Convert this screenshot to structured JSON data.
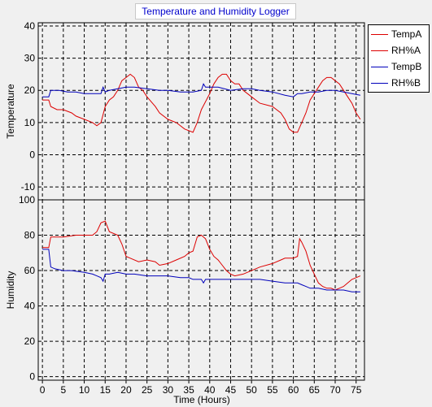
{
  "window": {
    "title": "Temperature and Humidity Logger"
  },
  "legend": {
    "items": [
      {
        "label": "TempA",
        "color": "#dd0000"
      },
      {
        "label": "RH%A",
        "color": "#dd0000"
      },
      {
        "label": "TempB",
        "color": "#0000bb"
      },
      {
        "label": "RH%B",
        "color": "#0000bb"
      }
    ]
  },
  "chart_data": [
    {
      "type": "line",
      "title": "Temperature and Humidity Logger",
      "xlabel": "",
      "ylabel": "Temperature",
      "xlim": [
        -1,
        77
      ],
      "ylim": [
        -14,
        41
      ],
      "yticks": [
        40,
        30,
        20,
        10,
        0,
        -10
      ],
      "grid": true,
      "series": [
        {
          "name": "TempA",
          "color": "#dd0000",
          "x": [
            0,
            1.5,
            2,
            3.5,
            5,
            7,
            8,
            10,
            12,
            13,
            14,
            15,
            16,
            17,
            18,
            19,
            20,
            21,
            22,
            23,
            24,
            25,
            27,
            28,
            30,
            32,
            34,
            36,
            37,
            38,
            40,
            41,
            42,
            43,
            44,
            45,
            46,
            47,
            48,
            49,
            50,
            52,
            55,
            57,
            58,
            59,
            60,
            61,
            62,
            63,
            64,
            66,
            67,
            68,
            69,
            70,
            71,
            72,
            73,
            74,
            75,
            76
          ],
          "y": [
            17,
            17,
            15,
            14,
            14,
            13,
            12,
            11,
            10,
            9,
            10,
            15,
            17,
            18,
            20,
            23,
            24,
            25,
            24,
            21,
            20,
            18,
            15,
            13,
            11,
            10,
            8,
            7,
            10,
            14,
            19,
            22,
            24,
            25,
            25,
            23,
            22,
            22,
            20,
            19,
            18,
            16,
            15,
            13,
            11,
            8,
            7,
            7,
            10,
            13,
            17,
            21,
            23,
            24,
            24,
            23,
            22,
            20,
            18,
            16,
            13,
            11
          ]
        },
        {
          "name": "TempB",
          "color": "#0000bb",
          "x": [
            0,
            1.5,
            2,
            4,
            6,
            8,
            10,
            12,
            14,
            14.5,
            15,
            16,
            18,
            20,
            22,
            25,
            28,
            30,
            33,
            36,
            38,
            38.5,
            39,
            42,
            45,
            48,
            50,
            52,
            55,
            58,
            60,
            61,
            62,
            64,
            66,
            68,
            70,
            72,
            74,
            76
          ],
          "y": [
            18,
            18,
            20,
            20,
            19.5,
            19.5,
            19,
            19,
            19,
            21,
            19.5,
            20,
            20.5,
            21,
            21,
            20.5,
            20,
            20,
            19.5,
            19.5,
            20,
            22,
            21,
            21,
            20,
            20.5,
            20.5,
            20,
            19.5,
            18.5,
            18,
            19,
            19,
            19.5,
            19.5,
            20,
            20,
            19.5,
            19,
            18.5
          ]
        }
      ]
    },
    {
      "type": "line",
      "title": "",
      "xlabel": "Time (Hours)",
      "ylabel": "Humidity",
      "xlim": [
        -1,
        77
      ],
      "ylim": [
        -2,
        100
      ],
      "xticks": [
        0,
        5,
        10,
        15,
        20,
        25,
        30,
        35,
        40,
        45,
        50,
        55,
        60,
        65,
        70,
        75
      ],
      "yticks": [
        100,
        80,
        60,
        40,
        20,
        0
      ],
      "grid": true,
      "series": [
        {
          "name": "RH%A",
          "color": "#dd0000",
          "x": [
            0,
            1.5,
            2,
            3,
            5,
            8,
            10,
            12,
            13,
            14,
            15,
            16,
            18,
            19,
            20,
            21,
            23,
            25,
            27,
            28,
            30,
            32,
            34,
            35,
            36,
            37,
            38,
            39,
            40,
            41,
            42,
            43,
            44,
            45,
            46,
            48,
            50,
            52,
            55,
            57,
            58,
            60,
            61,
            61.5,
            62,
            63,
            64,
            65,
            66,
            67,
            68,
            69,
            70,
            71,
            72,
            73,
            74,
            75,
            76
          ],
          "y": [
            73,
            73,
            79,
            79,
            79,
            80,
            80,
            80,
            82,
            87,
            88,
            82,
            80,
            75,
            68,
            67,
            65,
            66,
            65,
            63,
            64,
            66,
            68,
            70,
            71,
            79,
            80,
            78,
            72,
            68,
            66,
            63,
            60,
            58,
            57,
            58,
            60,
            62,
            64,
            66,
            67,
            67,
            68,
            78,
            76,
            71,
            63,
            58,
            53,
            51,
            50,
            50,
            49,
            50,
            51,
            53,
            55,
            56,
            57
          ]
        },
        {
          "name": "RH%B",
          "color": "#0000bb",
          "x": [
            0,
            1.5,
            2,
            3,
            5,
            7,
            10,
            12,
            13,
            14,
            14.5,
            15,
            16,
            18,
            20,
            22,
            25,
            28,
            30,
            33,
            35,
            36,
            37,
            38,
            38.5,
            39,
            40,
            42,
            45,
            48,
            50,
            52,
            55,
            58,
            60,
            61,
            62,
            63,
            64,
            66,
            68,
            70,
            72,
            74,
            76
          ],
          "y": [
            72,
            72,
            62,
            61,
            60,
            60,
            59,
            58,
            57,
            56,
            54,
            58,
            58,
            59,
            58,
            58,
            57,
            57,
            57,
            56,
            56,
            55,
            55,
            55,
            53,
            55,
            55,
            55,
            55,
            55,
            55,
            55,
            54,
            53,
            53,
            53,
            52,
            51,
            50,
            50,
            49,
            49,
            49,
            48,
            48
          ]
        }
      ]
    }
  ]
}
